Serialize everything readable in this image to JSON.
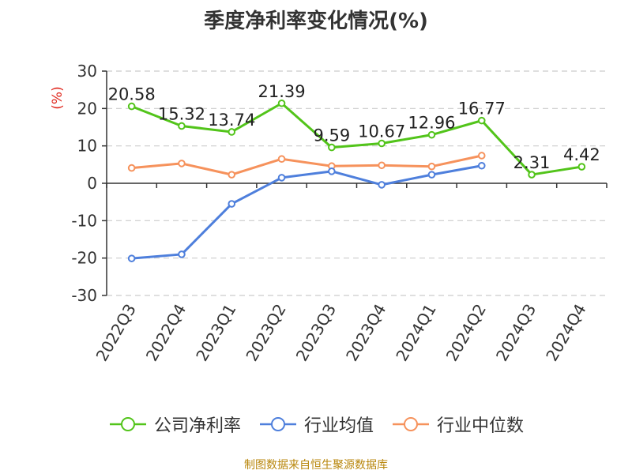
{
  "chart_data": {
    "type": "line",
    "title": "季度净利率变化情况(%)",
    "ylabel": "(%)",
    "ylim": [
      -30,
      30
    ],
    "yticks": [
      30,
      20,
      10,
      0,
      -10,
      -20,
      -30
    ],
    "categories": [
      "2022Q3",
      "2022Q4",
      "2023Q1",
      "2023Q2",
      "2023Q3",
      "2023Q4",
      "2024Q1",
      "2024Q2",
      "2024Q3",
      "2024Q4"
    ],
    "series": [
      {
        "name": "公司净利率",
        "color": "#52c41a",
        "values": [
          20.58,
          15.32,
          13.74,
          21.39,
          9.59,
          10.67,
          12.96,
          16.77,
          2.31,
          4.42
        ],
        "labels": [
          "20.58",
          "15.32",
          "13.74",
          "21.39",
          "9.59",
          "10.67",
          "12.96",
          "16.77",
          "2.31",
          "4.42"
        ]
      },
      {
        "name": "行业均值",
        "color": "#4e7fdc",
        "values": [
          -20.1,
          -19.0,
          -5.5,
          1.5,
          3.2,
          -0.4,
          2.3,
          4.7,
          null,
          null
        ]
      },
      {
        "name": "行业中位数",
        "color": "#f6925c",
        "values": [
          4.1,
          5.3,
          2.3,
          6.5,
          4.6,
          4.8,
          4.5,
          7.4,
          null,
          null
        ]
      }
    ],
    "grid": true,
    "legend_position": "bottom"
  },
  "footer": {
    "source": "制图数据来自恒生聚源数据库"
  }
}
